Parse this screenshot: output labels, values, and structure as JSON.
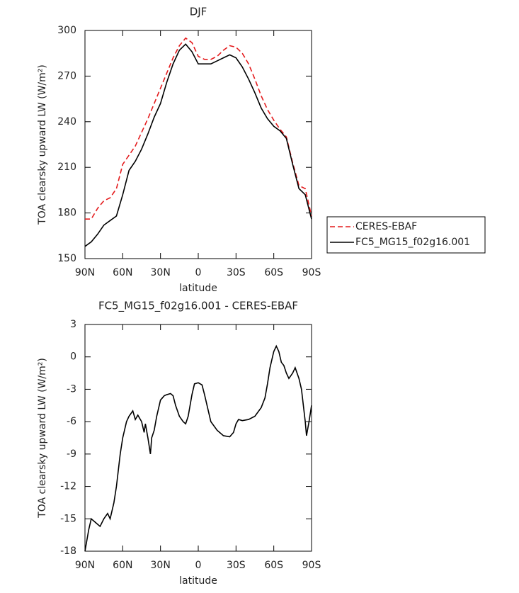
{
  "chart_data": [
    {
      "type": "line",
      "title": "DJF",
      "x_label": "latitude",
      "y_label": "TOA clearsky upward LW (W/m²)",
      "x": [
        90,
        85,
        80,
        75,
        70,
        65,
        60,
        55,
        50,
        45,
        40,
        35,
        30,
        25,
        20,
        15,
        10,
        5,
        0,
        -5,
        -10,
        -15,
        -20,
        -25,
        -30,
        -35,
        -40,
        -45,
        -50,
        -55,
        -60,
        -65,
        -70,
        -75,
        -80,
        -85,
        -90
      ],
      "series": [
        {
          "name": "CERES-EBAF",
          "color": "#e41a1c",
          "linestyle": "dashed",
          "values": [
            176,
            176,
            183,
            188,
            190,
            196,
            212,
            218,
            224,
            233,
            242,
            252,
            262,
            272,
            282,
            290,
            295,
            292,
            283,
            281,
            281,
            283,
            287,
            290,
            289,
            285,
            278,
            268,
            257,
            248,
            241,
            235,
            230,
            213,
            198,
            196,
            178
          ]
        },
        {
          "name": "FC5_MG15_f02g16.001",
          "color": "#000000",
          "linestyle": "solid",
          "values": [
            158,
            161,
            166,
            172,
            175,
            178,
            192,
            208,
            214,
            222,
            232,
            243,
            252,
            266,
            278,
            287,
            291,
            286,
            278,
            278,
            278,
            280,
            282,
            284,
            282,
            276,
            268,
            259,
            249,
            242,
            237,
            234,
            229,
            212,
            196,
            192,
            176
          ]
        }
      ],
      "xlim": [
        90,
        -90
      ],
      "xticks": [
        {
          "value": 90,
          "label": "90N"
        },
        {
          "value": 60,
          "label": "60N"
        },
        {
          "value": 30,
          "label": "30N"
        },
        0,
        {
          "value": -30,
          "label": "30S"
        },
        {
          "value": -60,
          "label": "60S"
        },
        {
          "value": -90,
          "label": "90S"
        }
      ],
      "ylim": [
        150,
        300
      ],
      "yticks": [
        150,
        180,
        210,
        240,
        270,
        300
      ],
      "legend": "right"
    },
    {
      "type": "line",
      "title": "FC5_MG15_f02g16.001 - CERES-EBAF",
      "x_label": "latitude",
      "y_label": "TOA clearsky upward LW (W/m²)",
      "x": [
        90,
        87,
        85,
        82,
        78,
        75,
        72,
        70,
        67,
        65,
        62,
        60,
        57,
        55,
        52,
        50,
        48,
        45,
        43,
        42,
        40,
        38,
        37,
        35,
        33,
        30,
        27,
        25,
        22,
        20,
        18,
        15,
        12,
        10,
        8,
        5,
        3,
        0,
        -3,
        -5,
        -8,
        -10,
        -15,
        -20,
        -25,
        -28,
        -30,
        -32,
        -35,
        -40,
        -45,
        -50,
        -53,
        -55,
        -57,
        -60,
        -62,
        -64,
        -66,
        -68,
        -70,
        -72,
        -75,
        -77,
        -80,
        -82,
        -85,
        -86,
        -88,
        -90
      ],
      "values": [
        -18,
        -16,
        -15,
        -15.3,
        -15.7,
        -15,
        -14.5,
        -15,
        -13.5,
        -12,
        -9,
        -7.5,
        -6,
        -5.5,
        -5,
        -5.8,
        -5.4,
        -6,
        -7,
        -6.2,
        -7.5,
        -9,
        -7.5,
        -6.8,
        -5.5,
        -4,
        -3.6,
        -3.5,
        -3.4,
        -3.6,
        -4.5,
        -5.5,
        -6,
        -6.2,
        -5.5,
        -3.5,
        -2.5,
        -2.4,
        -2.6,
        -3.5,
        -5,
        -6,
        -6.8,
        -7.3,
        -7.4,
        -7,
        -6.2,
        -5.8,
        -5.9,
        -5.8,
        -5.5,
        -4.7,
        -3.8,
        -2.5,
        -1,
        0.5,
        1,
        0.5,
        -0.5,
        -0.8,
        -1.5,
        -2,
        -1.5,
        -1,
        -2,
        -3,
        -6,
        -7.3,
        -6,
        -4.5
      ],
      "color": "#000000",
      "xlim": [
        90,
        -90
      ],
      "xticks": [
        {
          "value": 90,
          "label": "90N"
        },
        {
          "value": 60,
          "label": "60N"
        },
        {
          "value": 30,
          "label": "30N"
        },
        0,
        {
          "value": -30,
          "label": "30S"
        },
        {
          "value": -60,
          "label": "60S"
        },
        {
          "value": -90,
          "label": "90S"
        }
      ],
      "ylim": [
        -18,
        3
      ],
      "yticks": [
        -18,
        -15,
        -12,
        -9,
        -6,
        -3,
        0,
        3
      ]
    }
  ]
}
